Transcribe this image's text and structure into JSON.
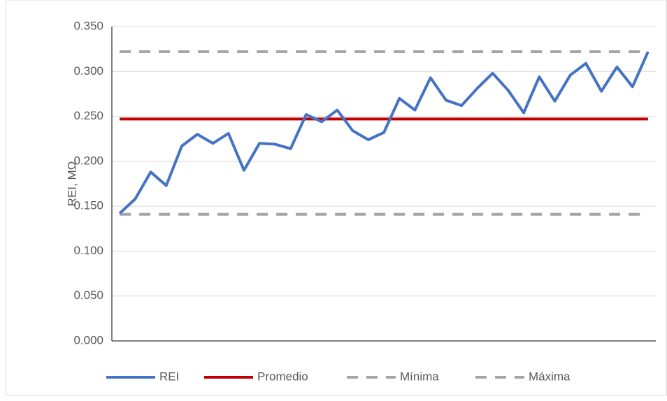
{
  "chart_data": {
    "type": "line",
    "ylabel": "REI, MΩ",
    "categories": [
      null,
      null,
      null,
      null,
      null,
      null,
      null,
      null,
      null,
      null,
      null,
      null,
      null,
      null,
      null,
      null,
      null,
      null,
      null,
      null,
      null,
      null,
      null,
      null,
      null,
      null,
      null,
      null,
      null,
      null,
      null,
      null,
      null,
      null,
      null
    ],
    "series": [
      {
        "name": "REI",
        "color": "#4472c4",
        "values": [
          0.142,
          0.158,
          0.188,
          0.173,
          0.217,
          0.23,
          0.22,
          0.231,
          0.19,
          0.22,
          0.219,
          0.214,
          0.252,
          0.244,
          0.257,
          0.234,
          0.224,
          0.232,
          0.27,
          0.257,
          0.293,
          0.268,
          0.262,
          0.281,
          0.298,
          0.279,
          0.254,
          0.294,
          0.267,
          0.296,
          0.309,
          0.278,
          0.305,
          0.283,
          0.322
        ]
      },
      {
        "name": "Promedio",
        "color": "#c00000",
        "values": [
          0.247,
          0.247,
          0.247,
          0.247,
          0.247,
          0.247,
          0.247,
          0.247,
          0.247,
          0.247,
          0.247,
          0.247,
          0.247,
          0.247,
          0.247,
          0.247,
          0.247,
          0.247,
          0.247,
          0.247,
          0.247,
          0.247,
          0.247,
          0.247,
          0.247,
          0.247,
          0.247,
          0.247,
          0.247,
          0.247,
          0.247,
          0.247,
          0.247,
          0.247,
          0.247
        ]
      },
      {
        "name": "Mínima",
        "color": "#a5a5a5",
        "dash": true,
        "values": [
          0.141,
          0.141,
          0.141,
          0.141,
          0.141,
          0.141,
          0.141,
          0.141,
          0.141,
          0.141,
          0.141,
          0.141,
          0.141,
          0.141,
          0.141,
          0.141,
          0.141,
          0.141,
          0.141,
          0.141,
          0.141,
          0.141,
          0.141,
          0.141,
          0.141,
          0.141,
          0.141,
          0.141,
          0.141,
          0.141,
          0.141,
          0.141,
          0.141,
          0.141,
          0.141
        ]
      },
      {
        "name": "Máxima",
        "color": "#a5a5a5",
        "dash": true,
        "values": [
          0.322,
          0.322,
          0.322,
          0.322,
          0.322,
          0.322,
          0.322,
          0.322,
          0.322,
          0.322,
          0.322,
          0.322,
          0.322,
          0.322,
          0.322,
          0.322,
          0.322,
          0.322,
          0.322,
          0.322,
          0.322,
          0.322,
          0.322,
          0.322,
          0.322,
          0.322,
          0.322,
          0.322,
          0.322,
          0.322,
          0.322,
          0.322,
          0.322,
          0.322,
          0.322
        ]
      }
    ],
    "ylim": [
      0,
      0.35
    ],
    "yticks": [
      {
        "value": 0,
        "label": "0.000"
      },
      {
        "value": 0.05,
        "label": "0.050"
      },
      {
        "value": 0.1,
        "label": "0.100"
      },
      {
        "value": 0.15,
        "label": "0.150"
      },
      {
        "value": 0.2,
        "label": "0.200"
      },
      {
        "value": 0.25,
        "label": "0.250"
      },
      {
        "value": 0.3,
        "label": "0.300"
      },
      {
        "value": 0.35,
        "label": "0.350"
      }
    ],
    "grid": true,
    "legend": "bottom"
  }
}
